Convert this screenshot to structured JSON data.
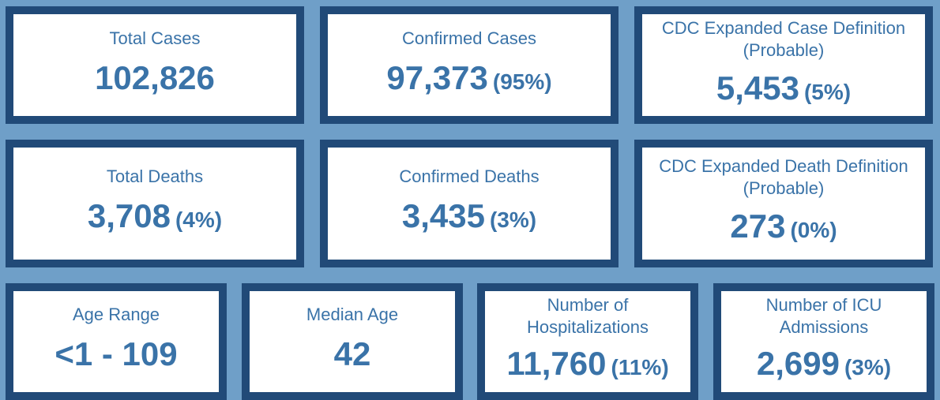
{
  "colors": {
    "background": "#6f9fc8",
    "card_border": "#214a78",
    "card_fill": "#ffffff",
    "text": "#3a73a8"
  },
  "cards": [
    {
      "label": "Total Cases",
      "value": "102,826",
      "pct": ""
    },
    {
      "label": "Confirmed Cases",
      "value": "97,373",
      "pct": "(95%)"
    },
    {
      "label": "CDC Expanded Case Definition (Probable)",
      "value": "5,453",
      "pct": "(5%)"
    },
    {
      "label": "Total Deaths",
      "value": "3,708",
      "pct": "(4%)"
    },
    {
      "label": "Confirmed Deaths",
      "value": "3,435",
      "pct": "(3%)"
    },
    {
      "label": "CDC Expanded Death Definition (Probable)",
      "value": "273",
      "pct": "(0%)"
    },
    {
      "label": "Age Range",
      "value": "<1 - 109",
      "pct": ""
    },
    {
      "label": "Median Age",
      "value": "42",
      "pct": ""
    },
    {
      "label": "Number of Hospitalizations",
      "value": "11,760",
      "pct": "(11%)"
    },
    {
      "label": "Number of ICU Admissions",
      "value": "2,699",
      "pct": "(3%)"
    }
  ]
}
